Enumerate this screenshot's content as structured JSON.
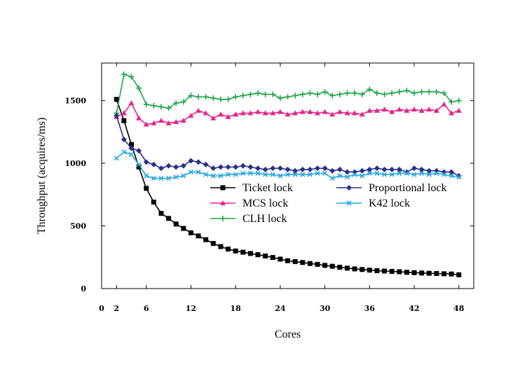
{
  "chart_data": {
    "type": "line",
    "title": "",
    "xlabel": "Cores",
    "ylabel": "Throughput (acquires/ms)",
    "xlim": [
      0,
      50
    ],
    "ylim": [
      0,
      1800
    ],
    "xticks": [
      0,
      2,
      6,
      12,
      18,
      24,
      30,
      36,
      42,
      48
    ],
    "yticks": [
      0,
      500,
      1000,
      1500
    ],
    "grid": false,
    "legend_position": "center-right",
    "x": [
      2,
      3,
      4,
      5,
      6,
      7,
      8,
      9,
      10,
      11,
      12,
      13,
      14,
      15,
      16,
      17,
      18,
      19,
      20,
      21,
      22,
      23,
      24,
      25,
      26,
      27,
      28,
      29,
      30,
      31,
      32,
      33,
      34,
      35,
      36,
      37,
      38,
      39,
      40,
      41,
      42,
      43,
      44,
      45,
      46,
      47,
      48
    ],
    "series": [
      {
        "name": "Ticket lock",
        "color": "#000000",
        "marker": "square",
        "values": [
          1510,
          1340,
          1150,
          970,
          800,
          690,
          600,
          560,
          515,
          480,
          445,
          420,
          390,
          360,
          335,
          315,
          300,
          290,
          280,
          270,
          260,
          248,
          235,
          222,
          215,
          208,
          200,
          193,
          185,
          178,
          170,
          163,
          157,
          152,
          147,
          143,
          140,
          137,
          134,
          130,
          127,
          124,
          122,
          120,
          118,
          116,
          110
        ]
      },
      {
        "name": "MCS lock",
        "color": "#e8238a",
        "marker": "triangle",
        "values": [
          1370,
          1400,
          1480,
          1360,
          1310,
          1320,
          1340,
          1320,
          1330,
          1340,
          1380,
          1420,
          1400,
          1360,
          1390,
          1370,
          1390,
          1400,
          1400,
          1410,
          1400,
          1400,
          1410,
          1390,
          1400,
          1410,
          1410,
          1400,
          1410,
          1390,
          1410,
          1400,
          1400,
          1390,
          1420,
          1420,
          1430,
          1410,
          1430,
          1420,
          1430,
          1420,
          1430,
          1420,
          1470,
          1400,
          1420
        ]
      },
      {
        "name": "CLH lock",
        "color": "#1fa64a",
        "marker": "plus",
        "values": [
          1400,
          1710,
          1690,
          1600,
          1470,
          1460,
          1450,
          1440,
          1480,
          1490,
          1540,
          1530,
          1530,
          1520,
          1510,
          1510,
          1530,
          1540,
          1550,
          1560,
          1550,
          1550,
          1520,
          1530,
          1540,
          1550,
          1560,
          1550,
          1570,
          1540,
          1550,
          1560,
          1560,
          1550,
          1590,
          1560,
          1550,
          1560,
          1570,
          1580,
          1560,
          1570,
          1570,
          1570,
          1560,
          1490,
          1500
        ]
      },
      {
        "name": "Proportional lock",
        "color": "#2a2f8a",
        "marker": "diamond",
        "values": [
          1380,
          1190,
          1120,
          1100,
          1010,
          990,
          960,
          980,
          970,
          980,
          1020,
          1010,
          990,
          960,
          970,
          970,
          970,
          980,
          970,
          960,
          950,
          960,
          960,
          950,
          940,
          950,
          950,
          960,
          960,
          940,
          950,
          930,
          930,
          940,
          950,
          960,
          950,
          950,
          950,
          930,
          960,
          950,
          940,
          940,
          930,
          930,
          900
        ]
      },
      {
        "name": "K42 lock",
        "color": "#2aa7e0",
        "marker": "x",
        "values": [
          1040,
          1090,
          1070,
          990,
          900,
          880,
          880,
          880,
          890,
          900,
          930,
          930,
          910,
          900,
          900,
          910,
          910,
          920,
          920,
          920,
          910,
          910,
          900,
          910,
          910,
          910,
          910,
          920,
          920,
          880,
          900,
          890,
          910,
          900,
          920,
          920,
          910,
          910,
          920,
          920,
          910,
          920,
          910,
          920,
          910,
          900,
          890
        ]
      }
    ]
  }
}
